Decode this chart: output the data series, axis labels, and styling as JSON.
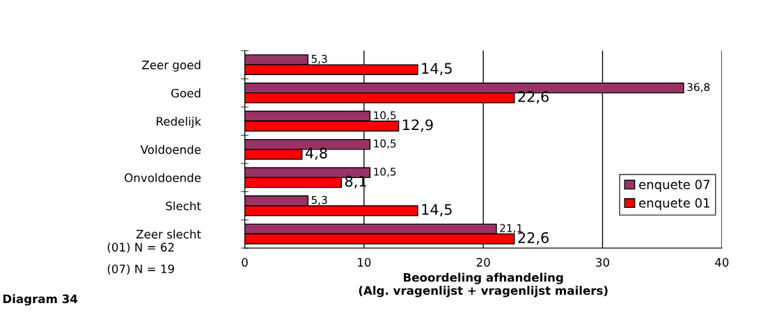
{
  "chart_data": {
    "type": "bar",
    "orientation": "horizontal",
    "categories": [
      "Zeer goed",
      "Goed",
      "Redelijk",
      "Voldoende",
      "Onvoldoende",
      "Slecht",
      "Zeer slecht"
    ],
    "series": [
      {
        "name": "enquete 07",
        "color": "#993366",
        "values": [
          5.3,
          36.8,
          10.5,
          10.5,
          10.5,
          5.3,
          21.1
        ],
        "value_labels": [
          "5,3",
          "36,8",
          "10,5",
          "10,5",
          "10,5",
          "5,3",
          "21,1"
        ]
      },
      {
        "name": "enquete 01",
        "color": "#ff0000",
        "values": [
          14.5,
          22.6,
          12.9,
          4.8,
          8.1,
          14.5,
          22.6
        ],
        "value_labels": [
          "14,5",
          "22,6",
          "12,9",
          "4,8",
          "8,1",
          "14,5",
          "22,6"
        ]
      }
    ],
    "xlim": [
      0,
      40
    ],
    "xticks": [
      0,
      10,
      20,
      30,
      40
    ],
    "xlabel": "Beoordeling afhandeling\n(Alg. vragenlijst + vragenlijst mailers)",
    "grid": "x",
    "legend": "right",
    "annotations": [
      "(01) N = 62",
      "(07) N = 19",
      "Diagram 34"
    ]
  }
}
